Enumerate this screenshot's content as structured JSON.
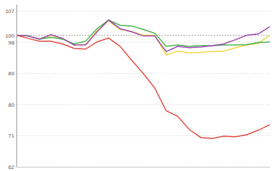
{
  "chart_data": {
    "type": "line",
    "x": [
      0,
      1,
      2,
      3,
      4,
      5,
      6,
      7,
      8,
      9,
      10,
      11,
      12,
      13,
      14,
      15,
      16,
      17,
      18,
      19,
      20,
      21,
      22
    ],
    "xlim": [
      0,
      22
    ],
    "ylim": [
      62,
      109
    ],
    "yticks": [
      62,
      71,
      80,
      89,
      98,
      100,
      107
    ],
    "grid": true,
    "tick_labels": "y",
    "series": [
      {
        "color": "#f2d43a",
        "values": [
          100,
          99.8,
          98.9,
          100,
          99.1,
          97.2,
          97.3,
          101.3,
          104.2,
          101.7,
          101.1,
          100,
          100,
          94.3,
          95.4,
          94.9,
          95.1,
          95.3,
          95.4,
          96.4,
          97.2,
          97.7,
          100
        ]
      },
      {
        "color": "#3cb043",
        "values": [
          100,
          99.8,
          98.9,
          99.4,
          98.9,
          97.5,
          98.3,
          101.9,
          104.4,
          102.9,
          102.7,
          101.7,
          100.6,
          96.8,
          97.2,
          96.8,
          97.0,
          97.0,
          97.2,
          97.2,
          97.3,
          97.9,
          98.1
        ]
      },
      {
        "color": "#9b3fb5",
        "values": [
          100,
          99.8,
          98.9,
          100.2,
          99.1,
          97.2,
          97.2,
          101.0,
          104.4,
          101.9,
          101.0,
          99.8,
          99.8,
          95.3,
          96.8,
          96.4,
          96.6,
          97.0,
          97.5,
          98.7,
          100,
          100.4,
          102.5
        ]
      },
      {
        "color": "#e0453a",
        "values": [
          100,
          99.1,
          98.3,
          98.3,
          97.5,
          96.2,
          96.0,
          98.1,
          99.2,
          96.8,
          92.8,
          89.0,
          84.8,
          78.2,
          76.6,
          72.8,
          70.5,
          70.2,
          70.9,
          70.7,
          71.3,
          72.6,
          74.2
        ]
      }
    ]
  }
}
